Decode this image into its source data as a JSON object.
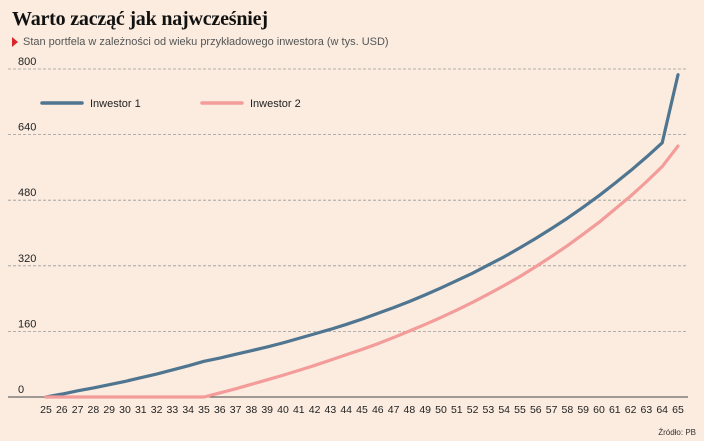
{
  "header": {
    "title": "Warto zacząć jak najwcześniej",
    "subtitle": "Stan portfela w zależności od wieku przykładowego inwestora (w tys. USD)"
  },
  "source": "Źródło: PB",
  "colors": {
    "series1": "#4f7590",
    "series2": "#f39c9a",
    "background": "#fbecdf",
    "marker": "#d9262b"
  },
  "chart_data": {
    "type": "line",
    "title": "Warto zacząć jak najwcześniej",
    "subtitle": "Stan portfela w zależności od wieku przykładowego inwestora (w tys. USD)",
    "xlabel": "",
    "ylabel": "",
    "x": [
      25,
      26,
      27,
      28,
      29,
      30,
      31,
      32,
      33,
      34,
      35,
      36,
      37,
      38,
      39,
      40,
      41,
      42,
      43,
      44,
      45,
      46,
      47,
      48,
      49,
      50,
      51,
      52,
      53,
      54,
      55,
      56,
      57,
      58,
      59,
      60,
      61,
      62,
      63,
      64,
      65
    ],
    "yticks": [
      0,
      160,
      320,
      480,
      640,
      800
    ],
    "ylim": [
      0,
      800
    ],
    "grid": "horizontal-dashed",
    "legend_position": "top-left",
    "series": [
      {
        "name": "Inwestor 1",
        "values": [
          0,
          7,
          15,
          22,
          30,
          38,
          47,
          56,
          66,
          76,
          87,
          95,
          104,
          113,
          122,
          132,
          143,
          154,
          165,
          177,
          190,
          204,
          218,
          233,
          249,
          266,
          284,
          302,
          322,
          342,
          364,
          387,
          411,
          436,
          463,
          491,
          521,
          552,
          585,
          620,
          786
        ]
      },
      {
        "name": "Inwestor 2",
        "values": [
          0,
          0,
          0,
          0,
          0,
          0,
          0,
          0,
          0,
          0,
          0,
          10,
          20,
          31,
          42,
          53,
          65,
          77,
          90,
          103,
          116,
          130,
          145,
          161,
          177,
          194,
          212,
          231,
          251,
          272,
          294,
          318,
          343,
          369,
          397,
          426,
          458,
          490,
          525,
          562,
          612
        ]
      }
    ]
  }
}
